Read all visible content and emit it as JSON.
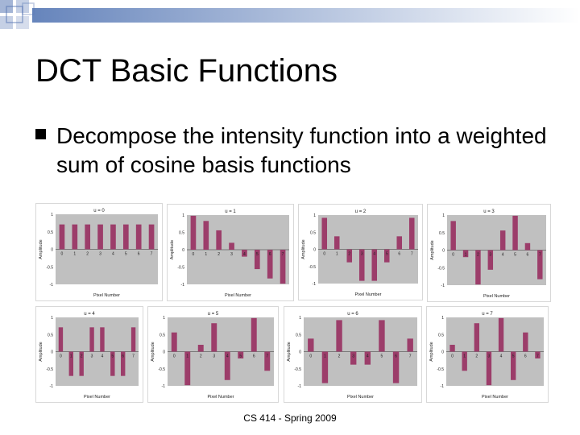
{
  "slide": {
    "title": "DCT Basic Functions",
    "bullet": "Decompose the intensity function into a weighted sum of cosine basis functions",
    "footer": "CS 414 - Spring 2009"
  },
  "colors": {
    "bar": "#9c3d6a",
    "plot_bg": "#c0c0c0",
    "deco_square": "#5a78b4"
  },
  "chart_data": [
    {
      "type": "bar",
      "title": "u = 0",
      "xlabel": "Pixel Number",
      "ylabel": "Amplitude",
      "categories": [
        "0",
        "1",
        "2",
        "3",
        "4",
        "5",
        "6",
        "7"
      ],
      "yticks": [
        "1",
        "0.5",
        "0",
        "-0.5",
        "-1"
      ],
      "ylim": [
        -1,
        1
      ],
      "values": [
        0.71,
        0.71,
        0.71,
        0.71,
        0.71,
        0.71,
        0.71,
        0.71
      ]
    },
    {
      "type": "bar",
      "title": "u = 1",
      "xlabel": "Pixel Number",
      "ylabel": "Amplitude",
      "categories": [
        "0",
        "1",
        "2",
        "3",
        "4",
        "5",
        "6",
        "7"
      ],
      "yticks": [
        "1",
        "0.5",
        "0",
        "-0.5",
        "-1"
      ],
      "ylim": [
        -1,
        1
      ],
      "values": [
        0.98,
        0.83,
        0.56,
        0.2,
        -0.2,
        -0.56,
        -0.83,
        -0.98
      ]
    },
    {
      "type": "bar",
      "title": "u = 2",
      "xlabel": "Pixel Number",
      "ylabel": "Amplitude",
      "categories": [
        "0",
        "1",
        "2",
        "3",
        "4",
        "5",
        "6",
        "7"
      ],
      "yticks": [
        "1",
        "0.5",
        "0",
        "-0.5",
        "-1"
      ],
      "ylim": [
        -1,
        1
      ],
      "values": [
        0.92,
        0.38,
        -0.38,
        -0.92,
        -0.92,
        -0.38,
        0.38,
        0.92
      ]
    },
    {
      "type": "bar",
      "title": "u = 3",
      "xlabel": "Pixel Number",
      "ylabel": "Amplitude",
      "categories": [
        "0",
        "1",
        "2",
        "3",
        "4",
        "5",
        "6",
        "7"
      ],
      "yticks": [
        "1",
        "0.5",
        "0",
        "-0.5",
        "-1"
      ],
      "ylim": [
        -1,
        1
      ],
      "values": [
        0.83,
        -0.2,
        -0.98,
        -0.56,
        0.56,
        0.98,
        0.2,
        -0.83
      ]
    },
    {
      "type": "bar",
      "title": "u = 4",
      "xlabel": "Pixel Number",
      "ylabel": "Amplitude",
      "categories": [
        "0",
        "1",
        "2",
        "3",
        "4",
        "5",
        "6",
        "7"
      ],
      "yticks": [
        "1",
        "0.5",
        "0",
        "-0.5",
        "-1"
      ],
      "ylim": [
        -1,
        1
      ],
      "values": [
        0.71,
        -0.71,
        -0.71,
        0.71,
        0.71,
        -0.71,
        -0.71,
        0.71
      ]
    },
    {
      "type": "bar",
      "title": "u = 5",
      "xlabel": "Pixel Number",
      "ylabel": "Amplitude",
      "categories": [
        "0",
        "1",
        "2",
        "3",
        "4",
        "5",
        "6",
        "7"
      ],
      "yticks": [
        "1",
        "0.5",
        "0",
        "-0.5",
        "-1"
      ],
      "ylim": [
        -1,
        1
      ],
      "values": [
        0.56,
        -0.98,
        0.2,
        0.83,
        -0.83,
        -0.2,
        0.98,
        -0.56
      ]
    },
    {
      "type": "bar",
      "title": "u = 6",
      "xlabel": "Pixel Number",
      "ylabel": "Amplitude",
      "categories": [
        "0",
        "1",
        "2",
        "3",
        "4",
        "5",
        "6",
        "7"
      ],
      "yticks": [
        "1",
        "0.5",
        "0",
        "-0.5",
        "-1"
      ],
      "ylim": [
        -1,
        1
      ],
      "values": [
        0.38,
        -0.92,
        0.92,
        -0.38,
        -0.38,
        0.92,
        -0.92,
        0.38
      ]
    },
    {
      "type": "bar",
      "title": "u = 7",
      "xlabel": "Pixel Number",
      "ylabel": "Amplitude",
      "categories": [
        "0",
        "1",
        "2",
        "3",
        "4",
        "5",
        "6",
        "7"
      ],
      "yticks": [
        "1",
        "0.5",
        "0",
        "-0.5",
        "-1"
      ],
      "ylim": [
        -1,
        1
      ],
      "values": [
        0.2,
        -0.56,
        0.83,
        -0.98,
        0.98,
        -0.83,
        0.56,
        -0.2
      ]
    }
  ]
}
